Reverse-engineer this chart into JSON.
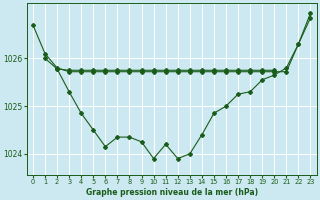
{
  "background_color": "#cce8f0",
  "grid_color": "#ffffff",
  "line_color": "#1a5c1a",
  "xlabel": "Graphe pression niveau de la mer (hPa)",
  "xlim": [
    -0.5,
    23.5
  ],
  "ylim": [
    1023.55,
    1027.15
  ],
  "yticks": [
    1024,
    1025,
    1026
  ],
  "xticks": [
    0,
    1,
    2,
    3,
    4,
    5,
    6,
    7,
    8,
    9,
    10,
    11,
    12,
    13,
    14,
    15,
    16,
    17,
    18,
    19,
    20,
    21,
    22,
    23
  ],
  "series1_x": [
    0,
    1,
    2,
    3,
    4,
    5,
    6,
    7,
    8,
    9,
    10,
    11,
    12,
    13,
    14,
    15,
    16,
    17,
    18,
    19,
    20,
    21,
    22,
    23
  ],
  "series1_y": [
    1026.7,
    1026.1,
    1025.8,
    1025.72,
    1025.72,
    1025.72,
    1025.72,
    1025.72,
    1025.72,
    1025.72,
    1025.72,
    1025.72,
    1025.72,
    1025.72,
    1025.72,
    1025.72,
    1025.72,
    1025.72,
    1025.72,
    1025.72,
    1025.72,
    1025.72,
    1026.3,
    1026.95
  ],
  "series2_x": [
    2,
    3,
    4,
    5,
    6,
    7,
    8,
    9,
    10,
    11,
    12,
    13,
    14,
    15,
    16,
    17,
    18,
    19,
    20
  ],
  "series2_y": [
    1025.78,
    1025.75,
    1025.75,
    1025.75,
    1025.75,
    1025.75,
    1025.75,
    1025.75,
    1025.75,
    1025.75,
    1025.75,
    1025.75,
    1025.75,
    1025.75,
    1025.75,
    1025.75,
    1025.75,
    1025.75,
    1025.75
  ],
  "series3_x": [
    1,
    2,
    3,
    4,
    5,
    6,
    7,
    8,
    9,
    10,
    11,
    12,
    13,
    14,
    15,
    16,
    17,
    18,
    19,
    20,
    21,
    22,
    23
  ],
  "series3_y": [
    1026.0,
    1025.78,
    1025.3,
    1024.85,
    1024.5,
    1024.15,
    1024.35,
    1024.35,
    1024.25,
    1023.9,
    1024.2,
    1023.9,
    1024.0,
    1024.4,
    1024.85,
    1025.0,
    1025.25,
    1025.3,
    1025.55,
    1025.65,
    1025.8,
    1026.3,
    1026.85
  ]
}
